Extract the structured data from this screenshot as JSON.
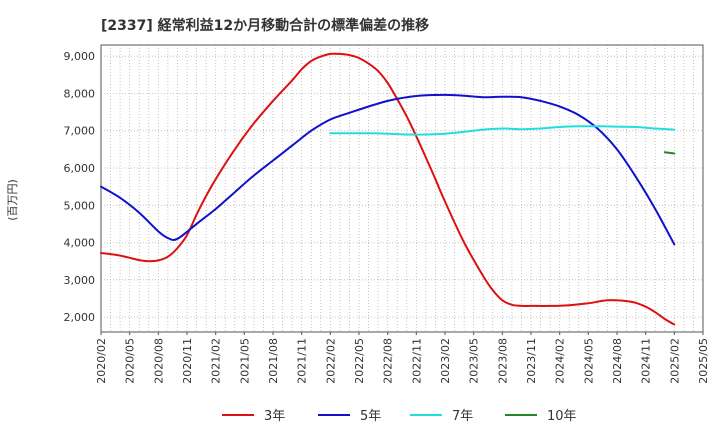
{
  "chart_data": {
    "type": "line",
    "title": "[2337]  経常利益12か月移動合計の標準偏差の推移",
    "ylabel": "(百万円)",
    "xlabel": "",
    "ylim": [
      1600,
      9300
    ],
    "yticks": [
      2000,
      3000,
      4000,
      5000,
      6000,
      7000,
      8000,
      9000
    ],
    "ytick_labels": [
      "2,000",
      "3,000",
      "4,000",
      "5,000",
      "6,000",
      "7,000",
      "8,000",
      "9,000"
    ],
    "xlim": [
      "2020-02",
      "2025-05"
    ],
    "xtick_labels": [
      "2020/02",
      "2020/05",
      "2020/08",
      "2020/11",
      "2021/02",
      "2021/05",
      "2021/08",
      "2021/11",
      "2022/02",
      "2022/05",
      "2022/08",
      "2022/11",
      "2023/02",
      "2023/05",
      "2023/08",
      "2023/11",
      "2024/02",
      "2024/05",
      "2024/08",
      "2024/11",
      "2025/02",
      "2025/05"
    ],
    "grid": true,
    "legend_position": "bottom",
    "series": [
      {
        "name": "3年",
        "color": "#dd1111",
        "x": [
          "2020-02",
          "2020-04",
          "2020-06",
          "2020-07",
          "2020-08",
          "2020-09",
          "2020-10",
          "2020-11",
          "2020-12",
          "2021-01",
          "2021-02",
          "2021-04",
          "2021-06",
          "2021-08",
          "2021-10",
          "2021-11",
          "2021-12",
          "2022-01",
          "2022-02",
          "2022-03",
          "2022-04",
          "2022-05",
          "2022-06",
          "2022-07",
          "2022-08",
          "2022-09",
          "2022-10",
          "2022-11",
          "2022-12",
          "2023-01",
          "2023-02",
          "2023-04",
          "2023-06",
          "2023-07",
          "2023-08",
          "2023-09",
          "2023-10",
          "2023-11",
          "2024-01",
          "2024-03",
          "2024-05",
          "2024-07",
          "2024-09",
          "2024-10",
          "2024-11",
          "2024-12",
          "2025-01",
          "2025-02"
        ],
        "values": [
          3720,
          3650,
          3530,
          3500,
          3520,
          3620,
          3850,
          4200,
          4750,
          5250,
          5700,
          6500,
          7200,
          7800,
          8350,
          8650,
          8870,
          8990,
          9060,
          9060,
          9030,
          8950,
          8800,
          8600,
          8280,
          7850,
          7380,
          6850,
          6280,
          5700,
          5100,
          4000,
          3100,
          2720,
          2450,
          2330,
          2300,
          2300,
          2300,
          2320,
          2370,
          2450,
          2430,
          2380,
          2280,
          2130,
          1950,
          1800
        ]
      },
      {
        "name": "5年",
        "color": "#1111cc",
        "x": [
          "2020-02",
          "2020-04",
          "2020-06",
          "2020-08",
          "2020-09",
          "2020-10",
          "2020-12",
          "2021-02",
          "2021-04",
          "2021-06",
          "2021-08",
          "2021-10",
          "2021-12",
          "2022-02",
          "2022-04",
          "2022-06",
          "2022-08",
          "2022-10",
          "2022-12",
          "2023-02",
          "2023-04",
          "2023-06",
          "2023-08",
          "2023-10",
          "2023-12",
          "2024-02",
          "2024-04",
          "2024-06",
          "2024-08",
          "2024-10",
          "2024-12",
          "2025-02"
        ],
        "values": [
          5500,
          5200,
          4800,
          4300,
          4120,
          4100,
          4500,
          4900,
          5350,
          5800,
          6200,
          6600,
          7000,
          7300,
          7480,
          7650,
          7800,
          7900,
          7950,
          7960,
          7940,
          7900,
          7910,
          7900,
          7800,
          7650,
          7420,
          7050,
          6500,
          5750,
          4900,
          3950
        ]
      },
      {
        "name": "7年",
        "color": "#22dddd",
        "x": [
          "2022-02",
          "2022-04",
          "2022-06",
          "2022-08",
          "2022-10",
          "2022-12",
          "2023-02",
          "2023-04",
          "2023-06",
          "2023-08",
          "2023-10",
          "2023-12",
          "2024-02",
          "2024-04",
          "2024-06",
          "2024-08",
          "2024-10",
          "2024-12",
          "2025-02"
        ],
        "values": [
          6930,
          6930,
          6930,
          6920,
          6900,
          6900,
          6920,
          6970,
          7030,
          7060,
          7040,
          7060,
          7100,
          7120,
          7120,
          7110,
          7100,
          7060,
          7030
        ]
      },
      {
        "name": "10年",
        "color": "#228822",
        "x": [
          "2025-01",
          "2025-02"
        ],
        "values": [
          6420,
          6390
        ]
      }
    ]
  }
}
